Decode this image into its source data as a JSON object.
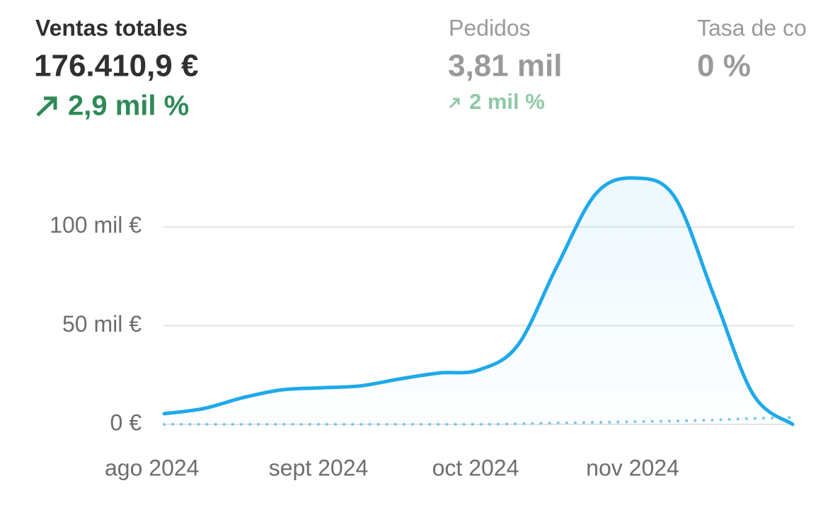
{
  "metrics": [
    {
      "title": "Ventas totales",
      "value": "176.410,9 €",
      "change": "2,9 mil %"
    },
    {
      "title": "Pedidos",
      "value": "3,81 mil",
      "change": "2 mil %"
    },
    {
      "title": "Tasa de co",
      "value": "0 %"
    }
  ],
  "chart_data": {
    "type": "line",
    "categories": [
      "ago 2024",
      null,
      null,
      null,
      "sept 2024",
      null,
      null,
      null,
      "oct 2024",
      null,
      null,
      null,
      "nov 2024",
      null,
      null,
      null,
      null
    ],
    "series": [
      {
        "color": "#1ea9ea",
        "values": [
          5400,
          8000,
          13500,
          17500,
          18500,
          19500,
          23000,
          26000,
          27500,
          40000,
          80000,
          117000,
          124700,
          115000,
          65000,
          15000,
          0
        ]
      },
      {
        "color": "#7cc8ea",
        "dashed": true,
        "values": [
          0,
          0,
          0,
          0,
          0,
          0,
          0,
          0,
          0,
          300,
          700,
          1000,
          1400,
          1700,
          2200,
          3000,
          3500
        ]
      }
    ],
    "ylim": [
      0,
      130000
    ],
    "yticks": [
      {
        "value": 0,
        "label": "0 €"
      },
      {
        "value": 50000,
        "label": "50 mil €"
      },
      {
        "value": 100000,
        "label": "100 mil €"
      }
    ],
    "grid": true
  }
}
